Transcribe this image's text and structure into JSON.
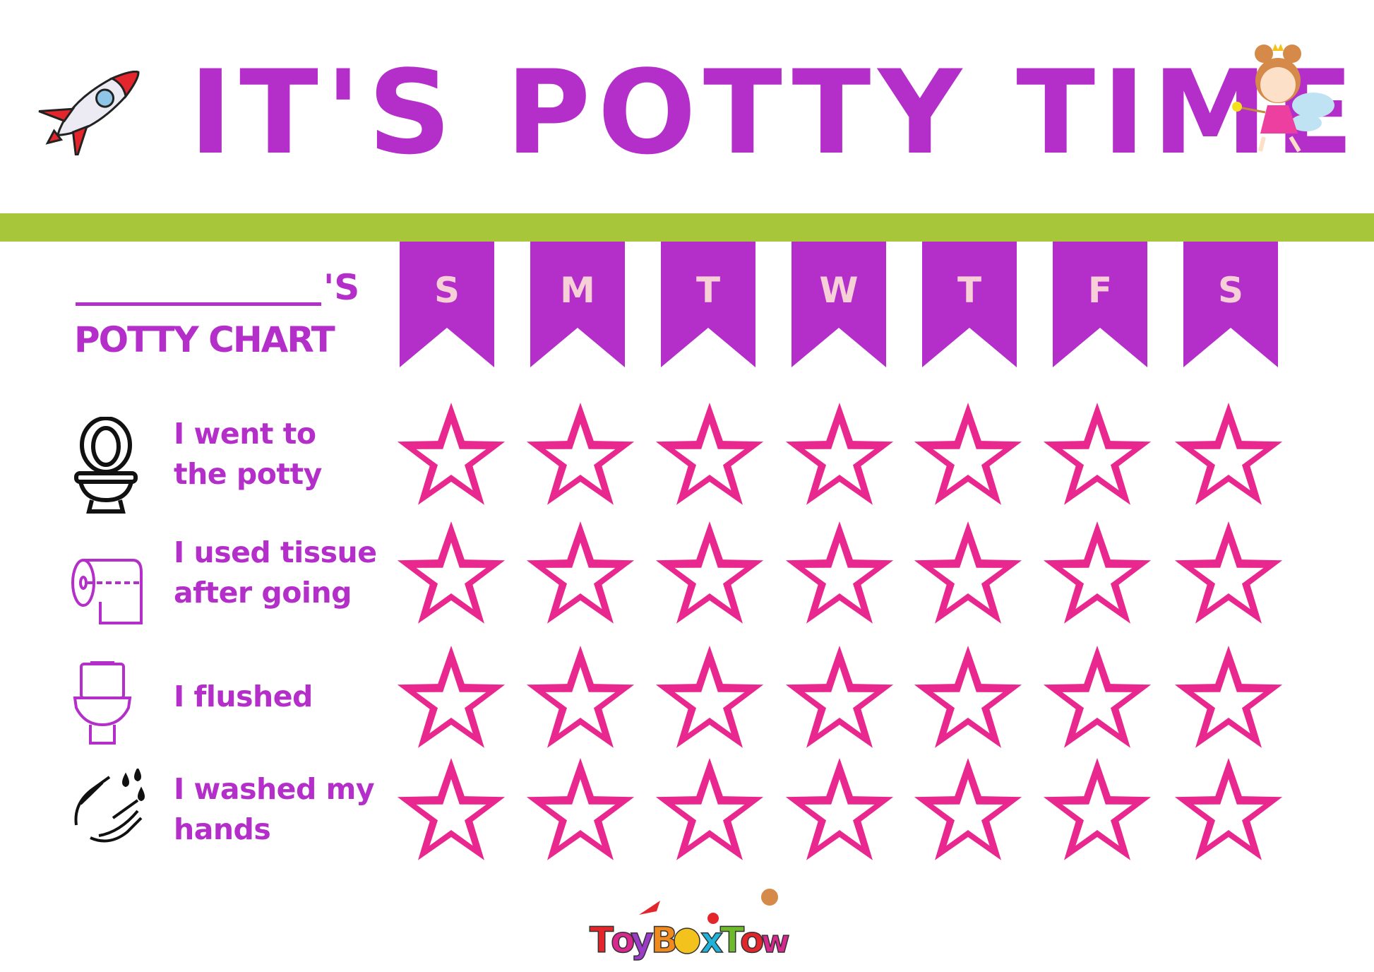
{
  "title": "IT'S POTTY TIME!",
  "header": {
    "name_suffix": "'S",
    "chart_label": "POTTY CHART"
  },
  "days": [
    "S",
    "M",
    "T",
    "W",
    "T",
    "F",
    "S"
  ],
  "tasks": [
    {
      "line1": "I went to",
      "line2": "the potty",
      "icon": "toilet-icon"
    },
    {
      "line1": "I used tissue",
      "line2": "after going",
      "icon": "toilet-paper-icon"
    },
    {
      "line1": "I flushed",
      "line2": "",
      "icon": "flush-toilet-icon"
    },
    {
      "line1": "I washed my",
      "line2": "hands",
      "icon": "washing-hands-icon"
    }
  ],
  "stars_filled": [
    [
      false,
      false,
      false,
      false,
      false,
      false,
      false
    ],
    [
      false,
      false,
      false,
      false,
      false,
      false,
      false
    ],
    [
      false,
      false,
      false,
      false,
      false,
      false,
      false
    ],
    [
      false,
      false,
      false,
      false,
      false,
      false,
      false
    ]
  ],
  "logo": "ToyBoxTown",
  "colors": {
    "title": "#b42fc9",
    "banner": "#b42fc9",
    "banner_letter": "#f7cfd6",
    "star": "#e8288e",
    "bar": "#a8c63a"
  }
}
